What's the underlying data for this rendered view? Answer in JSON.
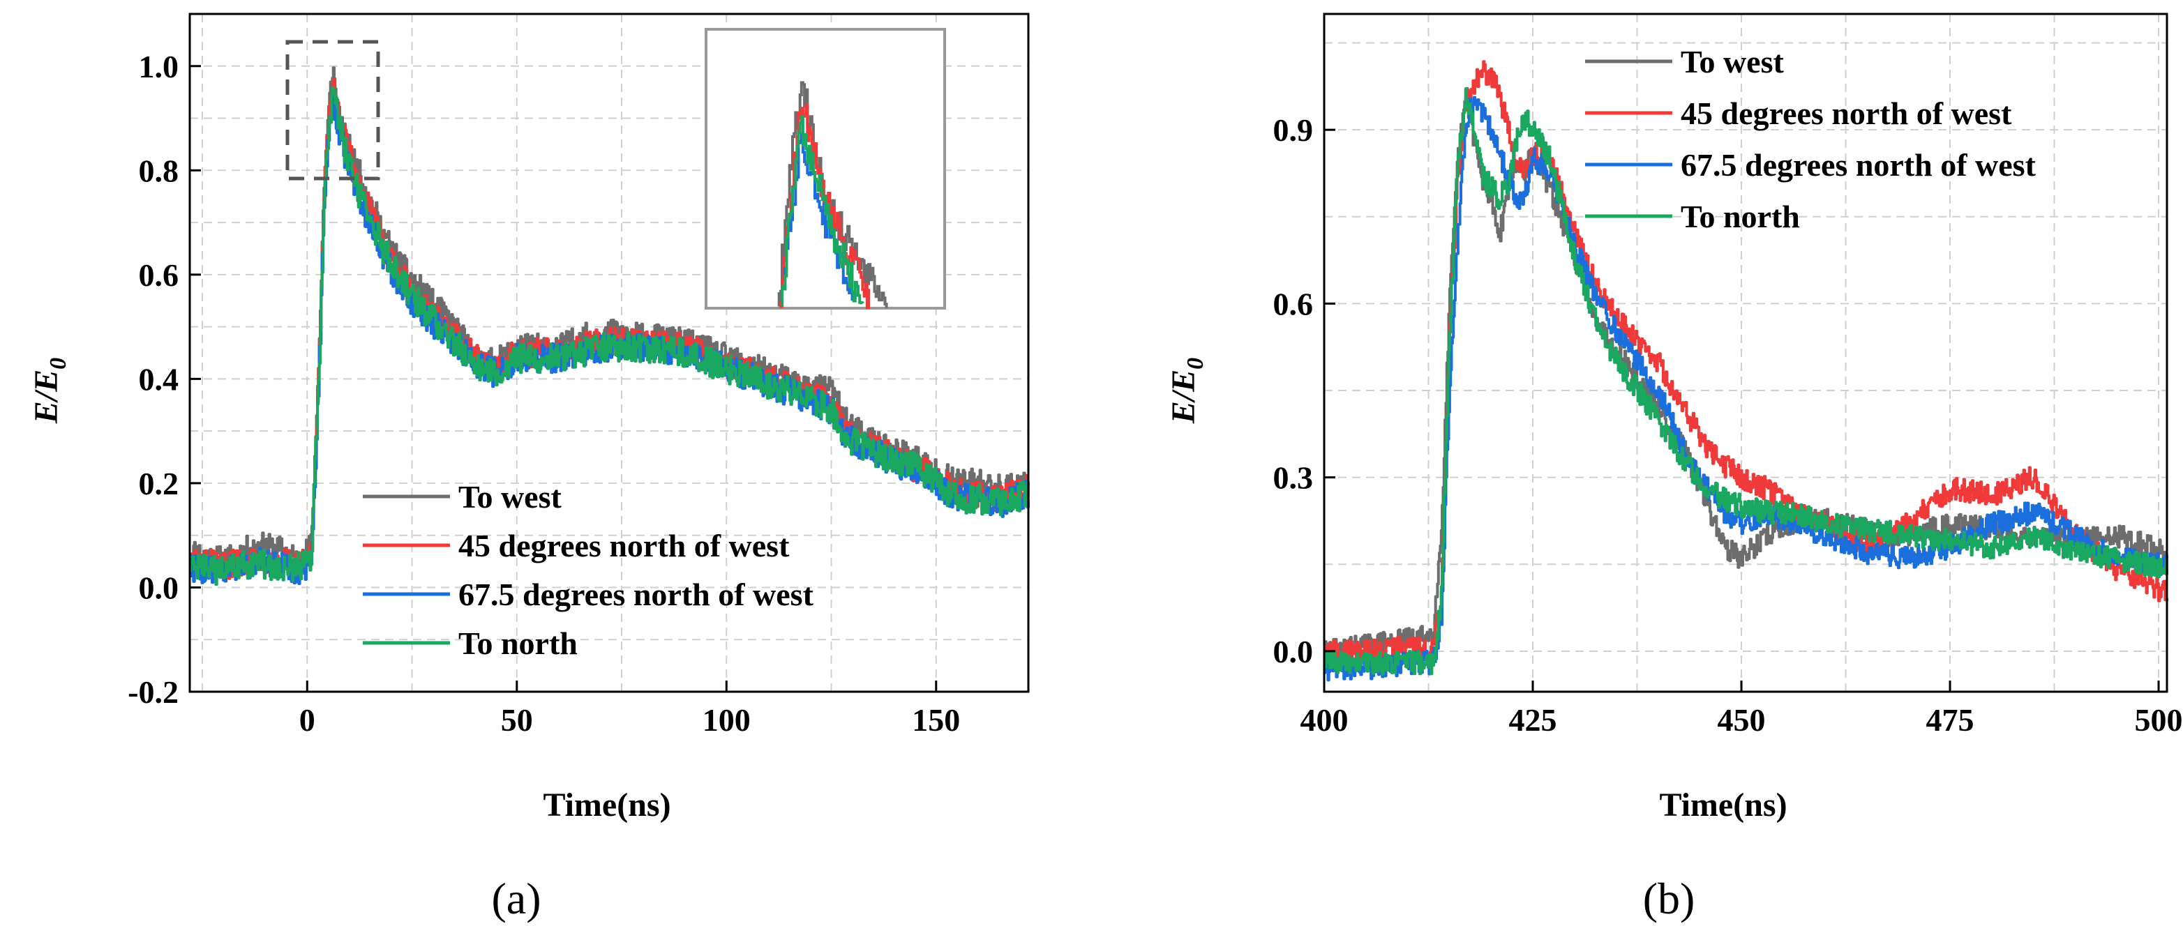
{
  "chart_data": [
    {
      "panel": "(a)",
      "type": "line",
      "xlabel": "Time(ns)",
      "ylabel_main": "E/E",
      "ylabel_sub": "0",
      "xlim": [
        -28,
        172
      ],
      "ylim": [
        -0.2,
        1.1
      ],
      "xticks": [
        0,
        50,
        100,
        150
      ],
      "yticks": [
        -0.2,
        0.0,
        0.2,
        0.4,
        0.6,
        0.8,
        1.0
      ],
      "ytick_labels": [
        "-0.2",
        "0.0",
        "0.2",
        "0.4",
        "0.6",
        "0.8",
        "1.0"
      ],
      "grid": true,
      "legend_position": "lower-center",
      "inset": {
        "description": "zoom of peak region",
        "xlim": [
          -2,
          18
        ],
        "ylim": [
          0.78,
          1.04
        ]
      },
      "series": [
        {
          "name": "To west",
          "color": "#6d6d6d",
          "x": [
            -28,
            -20,
            -12,
            -6,
            -2,
            1,
            3,
            4,
            5,
            6,
            7,
            8,
            10,
            12,
            15,
            18,
            22,
            28,
            35,
            40,
            45,
            50,
            60,
            70,
            80,
            90,
            100,
            110,
            120,
            125,
            128,
            135,
            145,
            150,
            155,
            160,
            165,
            172
          ],
          "y": [
            0.07,
            0.05,
            0.08,
            0.07,
            0.05,
            0.08,
            0.5,
            0.78,
            0.9,
            1.0,
            0.93,
            0.88,
            0.84,
            0.8,
            0.74,
            0.68,
            0.62,
            0.56,
            0.5,
            0.44,
            0.43,
            0.46,
            0.46,
            0.49,
            0.48,
            0.47,
            0.44,
            0.41,
            0.38,
            0.38,
            0.32,
            0.28,
            0.25,
            0.22,
            0.2,
            0.2,
            0.19,
            0.2
          ]
        },
        {
          "name": "45 degrees north of west",
          "color": "#f03a3a",
          "x": [
            -28,
            -20,
            -12,
            -6,
            -2,
            1,
            3,
            4,
            5,
            6,
            7,
            8,
            10,
            12,
            15,
            18,
            22,
            28,
            35,
            40,
            45,
            50,
            60,
            70,
            80,
            90,
            100,
            110,
            120,
            125,
            128,
            135,
            145,
            150,
            155,
            160,
            165,
            172
          ],
          "y": [
            0.05,
            0.04,
            0.06,
            0.05,
            0.04,
            0.06,
            0.48,
            0.76,
            0.88,
            0.97,
            0.93,
            0.88,
            0.83,
            0.78,
            0.72,
            0.66,
            0.6,
            0.54,
            0.48,
            0.44,
            0.42,
            0.45,
            0.45,
            0.47,
            0.47,
            0.46,
            0.43,
            0.4,
            0.37,
            0.35,
            0.3,
            0.27,
            0.23,
            0.21,
            0.18,
            0.18,
            0.17,
            0.19
          ]
        },
        {
          "name": "67.5 degrees north of west",
          "color": "#1b6fdc",
          "x": [
            -28,
            -20,
            -12,
            -6,
            -2,
            1,
            3,
            4,
            5,
            6,
            7,
            8,
            10,
            12,
            15,
            18,
            22,
            28,
            35,
            40,
            45,
            50,
            60,
            70,
            80,
            90,
            100,
            110,
            120,
            125,
            128,
            135,
            145,
            150,
            155,
            160,
            165,
            172
          ],
          "y": [
            0.04,
            0.03,
            0.05,
            0.04,
            0.03,
            0.05,
            0.46,
            0.74,
            0.86,
            0.94,
            0.9,
            0.86,
            0.8,
            0.75,
            0.7,
            0.64,
            0.58,
            0.52,
            0.47,
            0.43,
            0.41,
            0.44,
            0.44,
            0.46,
            0.46,
            0.45,
            0.42,
            0.39,
            0.36,
            0.34,
            0.29,
            0.26,
            0.22,
            0.2,
            0.17,
            0.17,
            0.16,
            0.18
          ]
        },
        {
          "name": "To north",
          "color": "#1aa860",
          "x": [
            -28,
            -20,
            -12,
            -6,
            -2,
            1,
            3,
            4,
            5,
            6,
            7,
            8,
            10,
            12,
            15,
            18,
            22,
            28,
            35,
            40,
            45,
            50,
            60,
            70,
            80,
            90,
            100,
            110,
            120,
            125,
            128,
            135,
            145,
            150,
            155,
            160,
            165,
            172
          ],
          "y": [
            0.04,
            0.03,
            0.05,
            0.03,
            0.04,
            0.06,
            0.47,
            0.75,
            0.87,
            0.95,
            0.91,
            0.87,
            0.81,
            0.76,
            0.71,
            0.65,
            0.59,
            0.53,
            0.47,
            0.43,
            0.41,
            0.44,
            0.44,
            0.46,
            0.46,
            0.45,
            0.42,
            0.39,
            0.36,
            0.34,
            0.29,
            0.26,
            0.23,
            0.2,
            0.17,
            0.17,
            0.16,
            0.18
          ]
        }
      ]
    },
    {
      "panel": "(b)",
      "type": "line",
      "xlabel": "Time(ns)",
      "ylabel_main": "E/E",
      "ylabel_sub": "0",
      "xlim": [
        400,
        501
      ],
      "ylim": [
        -0.07,
        1.1
      ],
      "xticks": [
        400,
        425,
        450,
        475,
        500
      ],
      "yticks": [
        0.0,
        0.3,
        0.6,
        0.9
      ],
      "ytick_labels": [
        "0.0",
        "0.3",
        "0.6",
        "0.9"
      ],
      "grid": true,
      "legend_position": "top-left",
      "series": [
        {
          "name": "To west",
          "color": "#6d6d6d",
          "x": [
            400,
            405,
            410,
            413,
            414,
            415,
            416,
            417,
            418,
            419,
            420,
            421,
            422,
            423,
            424,
            425,
            427,
            430,
            433,
            436,
            440,
            443,
            446,
            448,
            450,
            453,
            456,
            460,
            465,
            470,
            475,
            480,
            485,
            490,
            495,
            501
          ],
          "y": [
            0.0,
            0.01,
            0.02,
            0.03,
            0.2,
            0.6,
            0.85,
            0.96,
            0.88,
            0.8,
            0.78,
            0.72,
            0.8,
            0.84,
            0.83,
            0.86,
            0.8,
            0.68,
            0.56,
            0.5,
            0.42,
            0.35,
            0.25,
            0.18,
            0.16,
            0.2,
            0.22,
            0.23,
            0.21,
            0.2,
            0.22,
            0.21,
            0.2,
            0.19,
            0.2,
            0.17
          ]
        },
        {
          "name": "45 degrees north of west",
          "color": "#f03a3a",
          "x": [
            400,
            405,
            410,
            413,
            414,
            415,
            416,
            417,
            418,
            419,
            420,
            421,
            422,
            423,
            424,
            425,
            427,
            430,
            433,
            436,
            440,
            443,
            446,
            448,
            450,
            453,
            456,
            460,
            465,
            470,
            475,
            480,
            485,
            490,
            495,
            501
          ],
          "y": [
            0.0,
            0.0,
            0.01,
            0.0,
            0.1,
            0.55,
            0.82,
            0.95,
            0.98,
            1.0,
            0.99,
            0.96,
            0.9,
            0.84,
            0.82,
            0.86,
            0.85,
            0.72,
            0.62,
            0.56,
            0.5,
            0.42,
            0.35,
            0.32,
            0.3,
            0.28,
            0.25,
            0.22,
            0.18,
            0.22,
            0.28,
            0.27,
            0.3,
            0.2,
            0.14,
            0.1
          ]
        },
        {
          "name": "67.5 degrees north of west",
          "color": "#1b6fdc",
          "x": [
            400,
            405,
            410,
            413,
            414,
            415,
            416,
            417,
            418,
            419,
            420,
            421,
            422,
            423,
            424,
            425,
            427,
            430,
            433,
            436,
            440,
            443,
            446,
            448,
            450,
            453,
            456,
            460,
            465,
            470,
            475,
            480,
            485,
            490,
            495,
            501
          ],
          "y": [
            -0.03,
            -0.03,
            -0.02,
            -0.02,
            0.05,
            0.45,
            0.72,
            0.92,
            0.95,
            0.93,
            0.9,
            0.86,
            0.82,
            0.78,
            0.79,
            0.85,
            0.83,
            0.7,
            0.6,
            0.53,
            0.45,
            0.35,
            0.28,
            0.24,
            0.22,
            0.24,
            0.22,
            0.2,
            0.17,
            0.16,
            0.18,
            0.22,
            0.24,
            0.2,
            0.16,
            0.15
          ]
        },
        {
          "name": "To north",
          "color": "#1aa860",
          "x": [
            400,
            405,
            410,
            413,
            414,
            415,
            416,
            417,
            418,
            419,
            420,
            421,
            422,
            423,
            424,
            425,
            427,
            430,
            433,
            436,
            440,
            443,
            446,
            448,
            450,
            453,
            456,
            460,
            465,
            470,
            475,
            480,
            485,
            490,
            495,
            501
          ],
          "y": [
            -0.02,
            -0.02,
            -0.02,
            -0.02,
            0.08,
            0.55,
            0.85,
            0.96,
            0.9,
            0.82,
            0.8,
            0.78,
            0.81,
            0.88,
            0.92,
            0.9,
            0.85,
            0.68,
            0.55,
            0.48,
            0.4,
            0.33,
            0.28,
            0.26,
            0.25,
            0.24,
            0.24,
            0.22,
            0.21,
            0.2,
            0.19,
            0.18,
            0.2,
            0.17,
            0.16,
            0.14
          ]
        }
      ]
    }
  ]
}
